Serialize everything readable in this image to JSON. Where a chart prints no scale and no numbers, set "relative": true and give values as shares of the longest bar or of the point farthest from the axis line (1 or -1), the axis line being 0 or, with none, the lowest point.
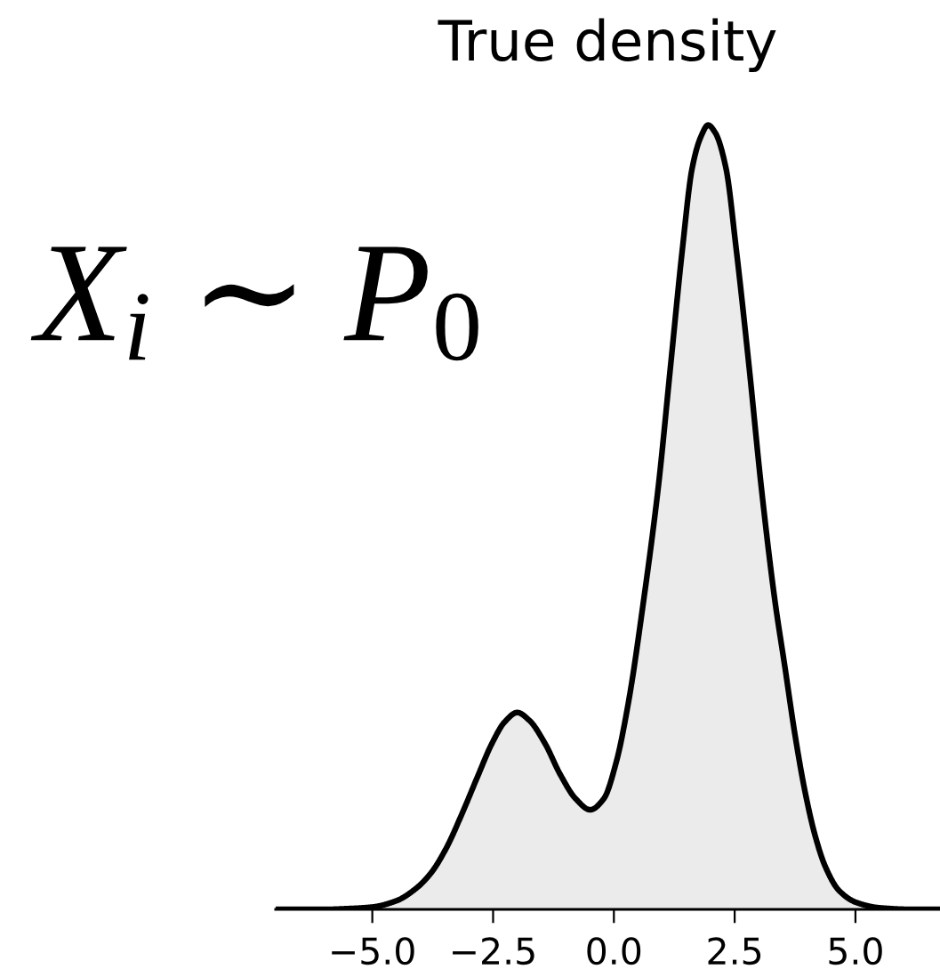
{
  "chart_data": {
    "type": "area",
    "title": "True density",
    "x": [
      -7.0,
      -6.0,
      -5.5,
      -5.0,
      -4.5,
      -4.11,
      -3.79,
      -3.47,
      -3.15,
      -2.83,
      -2.52,
      -2.26,
      -2.0,
      -1.75,
      -1.43,
      -1.11,
      -0.79,
      -0.49,
      -0.21,
      0.05,
      0.31,
      0.6,
      0.92,
      1.17,
      1.42,
      1.62,
      1.8,
      1.95,
      2.1,
      2.32,
      2.53,
      2.8,
      3.05,
      3.33,
      3.54,
      3.75,
      3.96,
      4.17,
      4.38,
      4.66,
      5.01,
      5.5,
      6.2,
      6.75
    ],
    "values": [
      0.0,
      0.0,
      0.001,
      0.003,
      0.011,
      0.026,
      0.046,
      0.078,
      0.121,
      0.168,
      0.212,
      0.239,
      0.251,
      0.241,
      0.212,
      0.172,
      0.141,
      0.127,
      0.141,
      0.188,
      0.267,
      0.387,
      0.539,
      0.691,
      0.843,
      0.945,
      0.985,
      1.0,
      0.99,
      0.945,
      0.843,
      0.691,
      0.539,
      0.395,
      0.309,
      0.222,
      0.149,
      0.093,
      0.054,
      0.024,
      0.009,
      0.002,
      0.0,
      0.0
    ],
    "color": "#000000",
    "relative": true,
    "xlim": [
      -7,
      6.75
    ],
    "xticks": [
      {
        "value": -5,
        "label": "−5.0"
      },
      {
        "value": -2.5,
        "label": "−2.5"
      },
      {
        "value": 0,
        "label": "0.0"
      },
      {
        "value": 2.5,
        "label": "2.5"
      },
      {
        "value": 5,
        "label": "5.0"
      }
    ],
    "annotations": [
      "X$_{i}$ ∼ P$_{0}$"
    ]
  }
}
